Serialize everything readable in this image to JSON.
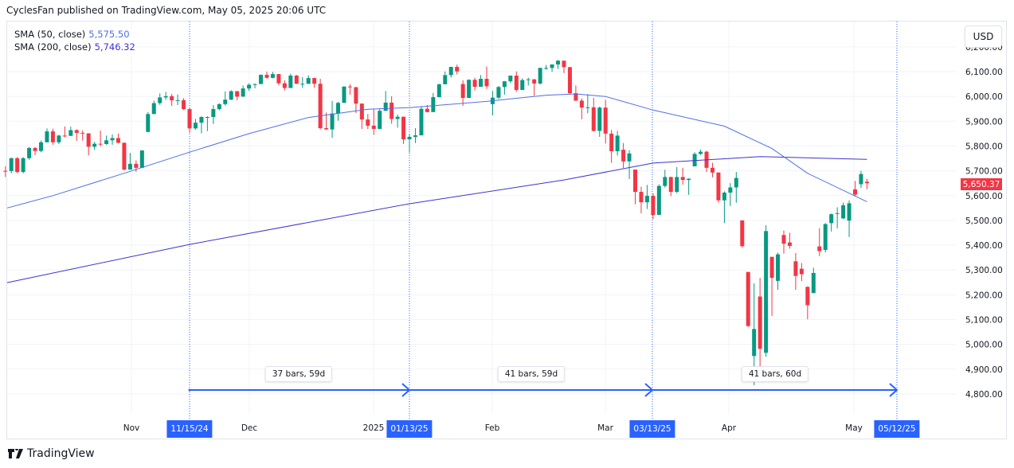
{
  "header": {
    "published": "CyclesFan published on TradingView.com, May 05, 2025 20:06 UTC"
  },
  "legend": {
    "sma50": {
      "label": "SMA (50, close)",
      "value": "5,575.50",
      "color": "#4f6fe6"
    },
    "sma200": {
      "label": "SMA (200, close)",
      "value": "5,746.32",
      "color": "#3b34d0"
    }
  },
  "currency_button": "USD",
  "last_price": "5,650.37",
  "footer": {
    "brand": "TradingView",
    "icon": "tradingview-logo-icon"
  },
  "colors": {
    "up": "#089981",
    "down": "#f23645",
    "marker": "#2962ff"
  },
  "chart_data": {
    "type": "candlestick",
    "currency": "USD",
    "ylim": [
      4750,
      6230
    ],
    "grid": true,
    "y_ticks": [
      "6,200.00",
      "6,100.00",
      "6,000.00",
      "5,900.00",
      "5,800.00",
      "5,700.00",
      "5,600.00",
      "5,500.00",
      "5,400.00",
      "5,300.00",
      "5,200.00",
      "5,100.00",
      "5,000.00",
      "4,900.00",
      "4,800.00"
    ],
    "x_ticks": [
      "Nov",
      "Dec",
      "2025",
      "Feb",
      "Mar",
      "Apr",
      "May"
    ],
    "date_markers": [
      "11/15/24",
      "01/13/25",
      "03/13/25",
      "05/12/25"
    ],
    "ranges": [
      {
        "from": "11/15/24",
        "to": "01/13/25",
        "label": "37 bars, 59d"
      },
      {
        "from": "01/13/25",
        "to": "03/13/25",
        "label": "41 bars, 59d"
      },
      {
        "from": "03/13/25",
        "to": "05/12/25",
        "label": "41 bars, 60d"
      }
    ],
    "columns": [
      "date",
      "open",
      "high",
      "low",
      "close"
    ],
    "candles": [
      [
        "2024-10-03",
        5700,
        5718,
        5675,
        5699
      ],
      [
        "2024-10-04",
        5699,
        5753,
        5690,
        5751
      ],
      [
        "2024-10-07",
        5751,
        5755,
        5690,
        5695
      ],
      [
        "2024-10-08",
        5695,
        5755,
        5690,
        5751
      ],
      [
        "2024-10-09",
        5751,
        5796,
        5745,
        5792
      ],
      [
        "2024-10-10",
        5792,
        5796,
        5763,
        5780
      ],
      [
        "2024-10-11",
        5780,
        5822,
        5775,
        5815
      ],
      [
        "2024-10-14",
        5815,
        5871,
        5815,
        5859
      ],
      [
        "2024-10-15",
        5859,
        5870,
        5805,
        5815
      ],
      [
        "2024-10-16",
        5815,
        5846,
        5808,
        5842
      ],
      [
        "2024-10-17",
        5842,
        5879,
        5835,
        5841
      ],
      [
        "2024-10-18",
        5841,
        5878,
        5840,
        5864
      ],
      [
        "2024-10-21",
        5864,
        5868,
        5821,
        5853
      ],
      [
        "2024-10-22",
        5853,
        5863,
        5822,
        5851
      ],
      [
        "2024-10-23",
        5851,
        5852,
        5762,
        5797
      ],
      [
        "2024-10-24",
        5797,
        5817,
        5784,
        5809
      ],
      [
        "2024-10-25",
        5809,
        5862,
        5799,
        5808
      ],
      [
        "2024-10-28",
        5808,
        5842,
        5805,
        5823
      ],
      [
        "2024-10-29",
        5823,
        5847,
        5805,
        5832
      ],
      [
        "2024-10-30",
        5832,
        5850,
        5811,
        5813
      ],
      [
        "2024-10-31",
        5813,
        5814,
        5702,
        5705
      ],
      [
        "2024-11-01",
        5705,
        5772,
        5704,
        5728
      ],
      [
        "2024-11-04",
        5728,
        5742,
        5696,
        5712
      ],
      [
        "2024-11-05",
        5712,
        5783,
        5712,
        5782
      ],
      [
        "2024-11-06",
        5857,
        5937,
        5855,
        5929
      ],
      [
        "2024-11-07",
        5929,
        5983,
        5929,
        5973
      ],
      [
        "2024-11-08",
        5973,
        6012,
        5966,
        5996
      ],
      [
        "2024-11-11",
        5996,
        6018,
        5986,
        6001
      ],
      [
        "2024-11-12",
        6001,
        6010,
        5962,
        5984
      ],
      [
        "2024-11-13",
        5984,
        6008,
        5965,
        5985
      ],
      [
        "2024-11-14",
        5985,
        5993,
        5945,
        5949
      ],
      [
        "2024-11-15",
        5949,
        5954,
        5853,
        5871
      ],
      [
        "2024-11-18",
        5871,
        5909,
        5866,
        5894
      ],
      [
        "2024-11-19",
        5894,
        5920,
        5851,
        5917
      ],
      [
        "2024-11-20",
        5917,
        5920,
        5860,
        5917
      ],
      [
        "2024-11-21",
        5917,
        5965,
        5889,
        5949
      ],
      [
        "2024-11-22",
        5949,
        5972,
        5944,
        5969
      ],
      [
        "2024-11-25",
        5969,
        6020,
        5963,
        5987
      ],
      [
        "2024-11-26",
        5987,
        6025,
        5985,
        6021
      ],
      [
        "2024-11-27",
        6021,
        6022,
        5984,
        5999
      ],
      [
        "2024-11-29",
        5999,
        6044,
        5999,
        6032
      ],
      [
        "2024-12-02",
        6032,
        6053,
        6022,
        6047
      ],
      [
        "2024-12-03",
        6047,
        6052,
        6033,
        6050
      ],
      [
        "2024-12-04",
        6050,
        6089,
        6050,
        6087
      ],
      [
        "2024-12-05",
        6087,
        6100,
        6072,
        6075
      ],
      [
        "2024-12-06",
        6075,
        6099,
        6073,
        6090
      ],
      [
        "2024-12-09",
        6090,
        6091,
        6045,
        6053
      ],
      [
        "2024-12-10",
        6053,
        6065,
        6024,
        6034
      ],
      [
        "2024-12-11",
        6034,
        6092,
        6034,
        6084
      ],
      [
        "2024-12-12",
        6084,
        6087,
        6051,
        6051
      ],
      [
        "2024-12-13",
        6051,
        6078,
        6035,
        6051
      ],
      [
        "2024-12-16",
        6051,
        6085,
        6050,
        6074
      ],
      [
        "2024-12-17",
        6074,
        6076,
        6035,
        6051
      ],
      [
        "2024-12-18",
        6051,
        6071,
        5867,
        5872
      ],
      [
        "2024-12-19",
        5872,
        5935,
        5865,
        5867
      ],
      [
        "2024-12-20",
        5867,
        5982,
        5833,
        5931
      ],
      [
        "2024-12-23",
        5931,
        5978,
        5902,
        5974
      ],
      [
        "2024-12-24",
        5974,
        6040,
        5974,
        6040
      ],
      [
        "2024-12-26",
        6040,
        6049,
        6007,
        6037
      ],
      [
        "2024-12-27",
        6037,
        6039,
        5933,
        5971
      ],
      [
        "2024-12-30",
        5971,
        5972,
        5869,
        5907
      ],
      [
        "2024-12-31",
        5907,
        5929,
        5868,
        5882
      ],
      [
        "2025-01-02",
        5882,
        5949,
        5845,
        5869
      ],
      [
        "2025-01-03",
        5869,
        5949,
        5869,
        5942
      ],
      [
        "2025-01-06",
        5942,
        6022,
        5942,
        5975
      ],
      [
        "2025-01-07",
        5975,
        6001,
        5890,
        5909
      ],
      [
        "2025-01-08",
        5909,
        5927,
        5874,
        5918
      ],
      [
        "2025-01-10",
        5918,
        5919,
        5808,
        5827
      ],
      [
        "2025-01-13",
        5827,
        5847,
        5774,
        5837
      ],
      [
        "2025-01-14",
        5837,
        5872,
        5812,
        5843
      ],
      [
        "2025-01-15",
        5843,
        5961,
        5843,
        5950
      ],
      [
        "2025-01-16",
        5950,
        5965,
        5935,
        5937
      ],
      [
        "2025-01-17",
        5937,
        6014,
        5937,
        5997
      ],
      [
        "2025-01-21",
        5997,
        6051,
        5997,
        6049
      ],
      [
        "2025-01-22",
        6049,
        6101,
        6049,
        6086
      ],
      [
        "2025-01-23",
        6086,
        6119,
        6076,
        6119
      ],
      [
        "2025-01-24",
        6119,
        6128,
        6089,
        6101
      ],
      [
        "2025-01-27",
        6050,
        6065,
        5962,
        5994
      ],
      [
        "2025-01-28",
        5994,
        6069,
        5994,
        6067
      ],
      [
        "2025-01-29",
        6067,
        6075,
        6024,
        6039
      ],
      [
        "2025-01-30",
        6039,
        6086,
        6039,
        6071
      ],
      [
        "2025-01-31",
        6071,
        6121,
        6030,
        6041
      ],
      [
        "2025-02-03",
        5969,
        6022,
        5923,
        5995
      ],
      [
        "2025-02-04",
        5995,
        6042,
        5990,
        6038
      ],
      [
        "2025-02-05",
        6038,
        6062,
        6007,
        6061
      ],
      [
        "2025-02-06",
        6061,
        6084,
        6054,
        6084
      ],
      [
        "2025-02-07",
        6084,
        6101,
        6019,
        6026
      ],
      [
        "2025-02-10",
        6026,
        6073,
        6026,
        6066
      ],
      [
        "2025-02-11",
        6066,
        6076,
        6044,
        6069
      ],
      [
        "2025-02-12",
        6069,
        6070,
        6003,
        6052
      ],
      [
        "2025-02-13",
        6052,
        6116,
        6048,
        6115
      ],
      [
        "2025-02-14",
        6115,
        6127,
        6107,
        6115
      ],
      [
        "2025-02-18",
        6115,
        6129,
        6099,
        6129
      ],
      [
        "2025-02-19",
        6129,
        6147,
        6111,
        6144
      ],
      [
        "2025-02-20",
        6144,
        6145,
        6094,
        6118
      ],
      [
        "2025-02-21",
        6118,
        6119,
        6009,
        6013
      ],
      [
        "2025-02-24",
        6013,
        6044,
        5982,
        5983
      ],
      [
        "2025-02-25",
        5983,
        5992,
        5908,
        5955
      ],
      [
        "2025-02-26",
        5955,
        6009,
        5932,
        5956
      ],
      [
        "2025-02-27",
        5956,
        5994,
        5858,
        5861
      ],
      [
        "2025-02-28",
        5861,
        5959,
        5837,
        5955
      ],
      [
        "2025-03-03",
        5955,
        5986,
        5810,
        5850
      ],
      [
        "2025-03-04",
        5850,
        5865,
        5732,
        5779
      ],
      [
        "2025-03-05",
        5779,
        5861,
        5762,
        5842
      ],
      [
        "2025-03-06",
        5785,
        5812,
        5711,
        5738
      ],
      [
        "2025-03-07",
        5738,
        5783,
        5667,
        5770
      ],
      [
        "2025-03-10",
        5705,
        5705,
        5565,
        5615
      ],
      [
        "2025-03-11",
        5615,
        5636,
        5529,
        5573
      ],
      [
        "2025-03-12",
        5573,
        5643,
        5546,
        5599
      ],
      [
        "2025-03-13",
        5599,
        5609,
        5505,
        5522
      ],
      [
        "2025-03-14",
        5522,
        5645,
        5522,
        5639
      ],
      [
        "2025-03-17",
        5639,
        5704,
        5632,
        5675
      ],
      [
        "2025-03-18",
        5675,
        5676,
        5598,
        5615
      ],
      [
        "2025-03-19",
        5615,
        5715,
        5610,
        5675
      ],
      [
        "2025-03-20",
        5675,
        5712,
        5644,
        5663
      ],
      [
        "2025-03-21",
        5663,
        5670,
        5603,
        5668
      ],
      [
        "2025-03-24",
        5718,
        5775,
        5718,
        5768
      ],
      [
        "2025-03-25",
        5768,
        5786,
        5764,
        5777
      ],
      [
        "2025-03-26",
        5777,
        5781,
        5695,
        5712
      ],
      [
        "2025-03-27",
        5712,
        5732,
        5674,
        5693
      ],
      [
        "2025-03-28",
        5693,
        5694,
        5572,
        5581
      ],
      [
        "2025-03-31",
        5581,
        5617,
        5489,
        5612
      ],
      [
        "2025-04-01",
        5612,
        5650,
        5558,
        5633
      ],
      [
        "2025-04-02",
        5633,
        5695,
        5571,
        5671
      ],
      [
        "2025-04-03",
        5500,
        5500,
        5390,
        5396
      ],
      [
        "2025-04-04",
        5292,
        5292,
        5070,
        5074
      ],
      [
        "2025-04-07",
        4953,
        5246,
        4835,
        5062
      ],
      [
        "2025-04-08",
        5193,
        5268,
        4910,
        4982
      ],
      [
        "2025-04-09",
        4966,
        5481,
        4950,
        5457
      ],
      [
        "2025-04-10",
        5353,
        5353,
        5115,
        5268
      ],
      [
        "2025-04-11",
        5256,
        5370,
        5220,
        5363
      ],
      [
        "2025-04-14",
        5441,
        5459,
        5366,
        5406
      ],
      [
        "2025-04-15",
        5411,
        5450,
        5386,
        5397
      ],
      [
        "2025-04-16",
        5335,
        5368,
        5220,
        5276
      ],
      [
        "2025-04-17",
        5305,
        5328,
        5255,
        5283
      ],
      [
        "2025-04-21",
        5232,
        5233,
        5101,
        5158
      ],
      [
        "2025-04-22",
        5207,
        5309,
        5207,
        5288
      ],
      [
        "2025-04-23",
        5395,
        5469,
        5356,
        5376
      ],
      [
        "2025-04-24",
        5381,
        5489,
        5371,
        5485
      ],
      [
        "2025-04-25",
        5489,
        5528,
        5455,
        5525
      ],
      [
        "2025-04-28",
        5529,
        5553,
        5468,
        5529
      ],
      [
        "2025-04-29",
        5508,
        5572,
        5505,
        5561
      ],
      [
        "2025-04-30",
        5499,
        5581,
        5433,
        5569
      ],
      [
        "2025-05-01",
        5625,
        5659,
        5597,
        5604
      ],
      [
        "2025-05-02",
        5646,
        5700,
        5631,
        5687
      ],
      [
        "2025-05-05",
        5656,
        5668,
        5626,
        5650
      ]
    ],
    "sma50": [
      [
        "2024-10-03",
        5550
      ],
      [
        "2024-10-15",
        5600
      ],
      [
        "2024-10-31",
        5690
      ],
      [
        "2024-11-15",
        5775
      ],
      [
        "2024-12-02",
        5850
      ],
      [
        "2024-12-16",
        5915
      ],
      [
        "2024-12-31",
        5948
      ],
      [
        "2025-01-13",
        5955
      ],
      [
        "2025-01-31",
        5980
      ],
      [
        "2025-02-14",
        6005
      ],
      [
        "2025-02-24",
        6010
      ],
      [
        "2025-03-03",
        6000
      ],
      [
        "2025-03-13",
        5945
      ],
      [
        "2025-03-31",
        5880
      ],
      [
        "2025-04-10",
        5790
      ],
      [
        "2025-04-21",
        5690
      ],
      [
        "2025-05-05",
        5575.5
      ]
    ],
    "sma200": [
      [
        "2024-10-03",
        5249
      ],
      [
        "2024-11-15",
        5403
      ],
      [
        "2025-01-13",
        5567
      ],
      [
        "2025-02-20",
        5663
      ],
      [
        "2025-03-13",
        5731
      ],
      [
        "2025-04-08",
        5757
      ],
      [
        "2025-05-05",
        5746.32
      ]
    ]
  }
}
